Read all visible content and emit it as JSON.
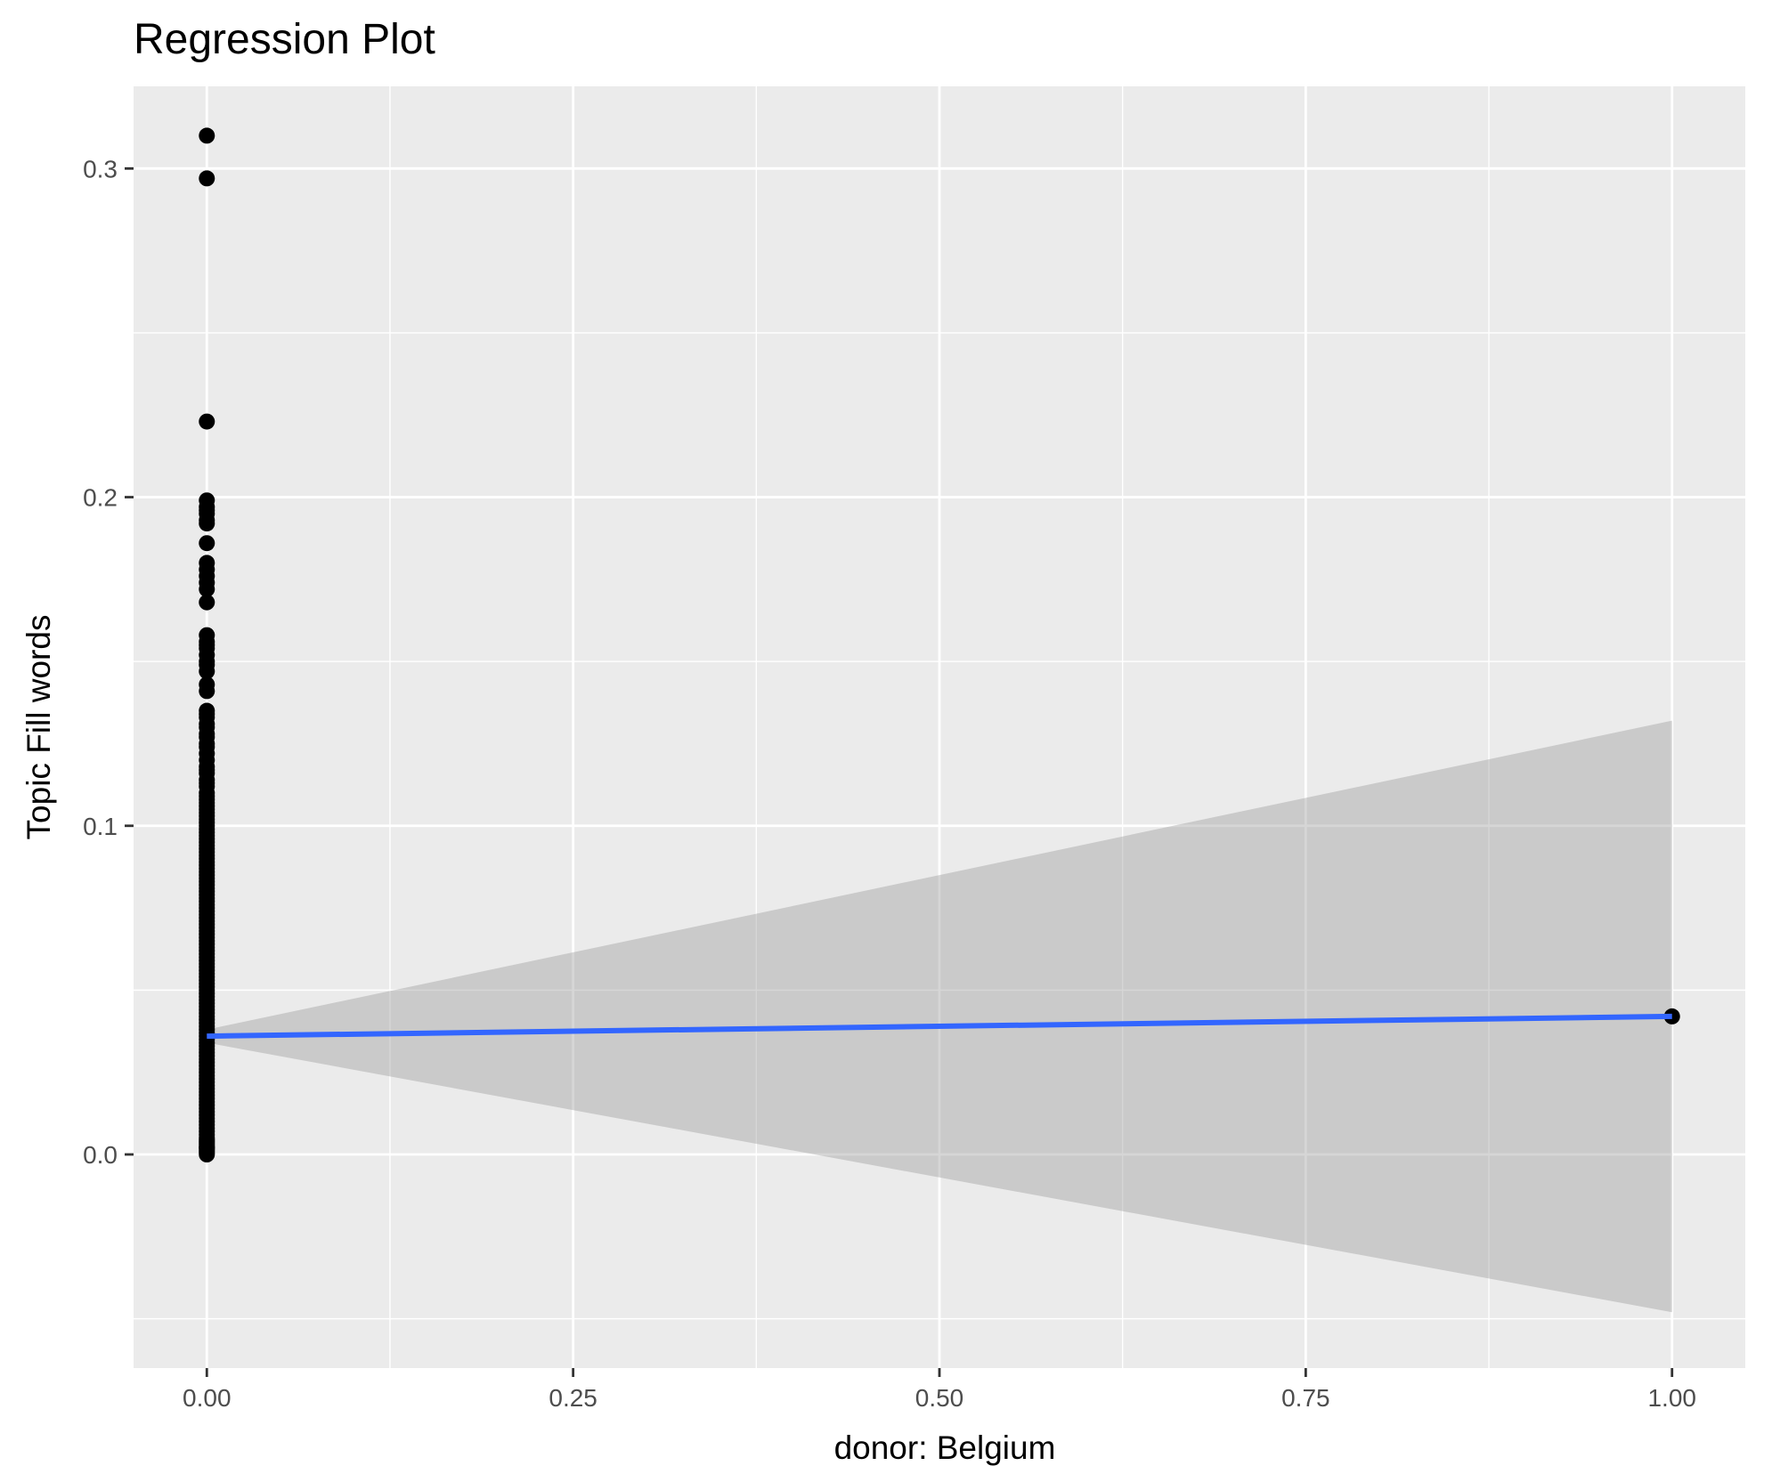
{
  "chart_data": {
    "type": "scatter",
    "title": "Regression Plot",
    "xlabel": "donor: Belgium",
    "ylabel": "Topic Fill words",
    "xlim": [
      -0.05,
      1.05
    ],
    "ylim": [
      -0.065,
      0.325
    ],
    "x_ticks": [
      0.0,
      0.25,
      0.5,
      0.75,
      1.0
    ],
    "x_tick_labels": [
      "0.00",
      "0.25",
      "0.50",
      "0.75",
      "1.00"
    ],
    "y_ticks": [
      0.0,
      0.1,
      0.2,
      0.3
    ],
    "y_tick_labels": [
      "0.0",
      "0.1",
      "0.2",
      "0.3"
    ],
    "grid": true,
    "legend": "none",
    "points": {
      "x": [
        0,
        0,
        0,
        0,
        0,
        0,
        0,
        0,
        0,
        0,
        0,
        0,
        0,
        0,
        0,
        0,
        0,
        0,
        0,
        0,
        0,
        0,
        0,
        0,
        0,
        0,
        0,
        0,
        0,
        0,
        0,
        0,
        0,
        0,
        0,
        0,
        0,
        0,
        0,
        0,
        0,
        0,
        0,
        0,
        0,
        0,
        0,
        0,
        0,
        0,
        0,
        0,
        0,
        0,
        0,
        0,
        0,
        0,
        0,
        0,
        0,
        0,
        0,
        0,
        0,
        0,
        0,
        0,
        0,
        0,
        0,
        0,
        0,
        0,
        0,
        0,
        0,
        0,
        0,
        0,
        0,
        0,
        0,
        0,
        0,
        0,
        0,
        0,
        0,
        0,
        0,
        0,
        0,
        0,
        0,
        0,
        0,
        0,
        0,
        0,
        0,
        0,
        0,
        0,
        0,
        0,
        0,
        0,
        0,
        0,
        0,
        0,
        0,
        0,
        0,
        0,
        0,
        0,
        0,
        0,
        0,
        0,
        0,
        0,
        0,
        0,
        0,
        0,
        0,
        0,
        0,
        0,
        0,
        0,
        0,
        0,
        0,
        0,
        0,
        0,
        0,
        0,
        0,
        0,
        0,
        0,
        0,
        0,
        0,
        0,
        0,
        0,
        0,
        0,
        0,
        0,
        0,
        0,
        0,
        0,
        1
      ],
      "y": [
        0.31,
        0.297,
        0.223,
        0.199,
        0.197,
        0.195,
        0.193,
        0.186,
        0.18,
        0.176,
        0.172,
        0.168,
        0.158,
        0.155,
        0.152,
        0.149,
        0.147,
        0.143,
        0.135,
        0.133,
        0.13,
        0.127,
        0.125,
        0.122,
        0.118,
        0.116,
        0.114,
        0.112,
        0.109,
        0.107,
        0.105,
        0.103,
        0.101,
        0.099,
        0.097,
        0.095,
        0.093,
        0.091,
        0.089,
        0.087,
        0.085,
        0.083,
        0.081,
        0.079,
        0.077,
        0.075,
        0.073,
        0.071,
        0.069,
        0.067,
        0.065,
        0.063,
        0.061,
        0.059,
        0.057,
        0.055,
        0.053,
        0.051,
        0.049,
        0.047,
        0.045,
        0.043,
        0.041,
        0.039,
        0.037,
        0.035,
        0.033,
        0.031,
        0.029,
        0.027,
        0.025,
        0.023,
        0.021,
        0.019,
        0.017,
        0.015,
        0.013,
        0.011,
        0.009,
        0.007,
        0.005,
        0.004,
        0.003,
        0.002,
        0.001,
        0.0,
        0.106,
        0.1,
        0.094,
        0.088,
        0.082,
        0.076,
        0.07,
        0.064,
        0.058,
        0.052,
        0.046,
        0.04,
        0.034,
        0.028,
        0.022,
        0.016,
        0.01,
        0.006,
        0.002,
        0.0005,
        0.0015,
        0.0025,
        0.0035,
        0.0045,
        0.008,
        0.012,
        0.014,
        0.018,
        0.02,
        0.024,
        0.026,
        0.03,
        0.032,
        0.036,
        0.038,
        0.042,
        0.044,
        0.048,
        0.05,
        0.054,
        0.056,
        0.06,
        0.062,
        0.066,
        0.068,
        0.072,
        0.074,
        0.078,
        0.08,
        0.084,
        0.086,
        0.09,
        0.092,
        0.096,
        0.098,
        0.102,
        0.104,
        0.108,
        0.11,
        0.113,
        0.117,
        0.12,
        0.124,
        0.128,
        0.131,
        0.134,
        0.141,
        0.15,
        0.154,
        0.156,
        0.174,
        0.178,
        0.192,
        0.196,
        0.042
      ]
    },
    "regression": {
      "x": [
        0,
        1
      ],
      "y": [
        0.036,
        0.042
      ],
      "ci_lower": [
        0.034,
        -0.048
      ],
      "ci_upper": [
        0.038,
        0.132
      ],
      "line_color": "#3366FF",
      "ribbon_color": "#999999"
    },
    "colors": {
      "panel_background": "#EBEBEB",
      "grid_major": "#FFFFFF",
      "point": "#000000"
    }
  }
}
